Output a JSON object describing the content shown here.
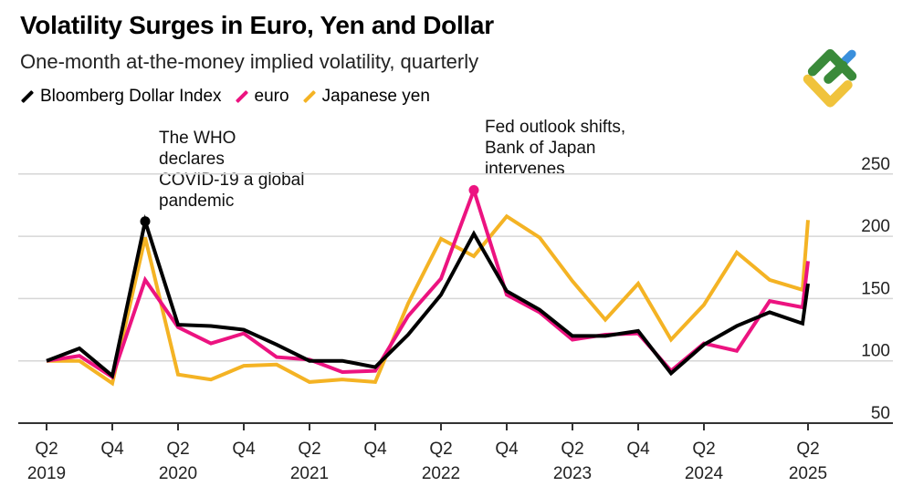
{
  "title": "Volatility Surges in Euro, Yen and Dollar",
  "subtitle": "One-month at-the-money implied volatility, quarterly",
  "logo": "green-yellow-blue-mark",
  "chart_data": {
    "type": "line",
    "x": [
      "2019-Q2",
      "2019-Q3",
      "2019-Q4",
      "2020-Q1",
      "2020-Q2",
      "2020-Q3",
      "2020-Q4",
      "2021-Q1",
      "2021-Q2",
      "2021-Q3",
      "2021-Q4",
      "2022-Q1",
      "2022-Q2",
      "2022-Q3",
      "2022-Q4",
      "2023-Q1",
      "2023-Q2",
      "2023-Q3",
      "2023-Q4",
      "2024-Q1",
      "2024-Q2",
      "2024-Q3",
      "2024-Q4",
      "2025-Q1",
      "2025-Q2"
    ],
    "series": [
      {
        "name": "Bloomberg Dollar Index",
        "color": "#000000",
        "values": [
          100,
          110,
          88,
          212,
          129,
          128,
          125,
          113,
          100,
          100,
          95,
          121,
          153,
          202,
          156,
          141,
          120,
          120,
          124,
          90,
          113,
          128,
          139,
          130,
          162
        ]
      },
      {
        "name": "euro",
        "color": "#ec1380",
        "values": [
          100,
          104,
          87,
          165,
          127,
          114,
          122,
          103,
          101,
          91,
          92,
          136,
          166,
          237,
          153,
          139,
          117,
          121,
          122,
          92,
          114,
          108,
          148,
          143,
          180
        ]
      },
      {
        "name": "Japanese yen",
        "color": "#f4b324",
        "values": [
          100,
          100,
          82,
          199,
          89,
          85,
          96,
          97,
          83,
          85,
          83,
          146,
          198,
          184,
          216,
          199,
          164,
          133,
          162,
          117,
          145,
          187,
          165,
          157,
          213
        ]
      }
    ],
    "ylim": [
      50,
      260
    ],
    "yticks": [
      "50",
      "100",
      "150",
      "200",
      "250"
    ],
    "ytick_values": [
      50,
      100,
      150,
      200,
      250
    ],
    "y_axis_side": "right",
    "grid": true,
    "legend": "top-left",
    "xticks": [
      {
        "x": "2019-Q2",
        "label": [
          "Q2",
          "2019"
        ]
      },
      {
        "x": "2019-Q4",
        "label": [
          "Q4",
          ""
        ]
      },
      {
        "x": "2020-Q2",
        "label": [
          "Q2",
          "2020"
        ]
      },
      {
        "x": "2020-Q4",
        "label": [
          "Q4",
          ""
        ]
      },
      {
        "x": "2021-Q2",
        "label": [
          "Q2",
          "2021"
        ]
      },
      {
        "x": "2021-Q4",
        "label": [
          "Q4",
          ""
        ]
      },
      {
        "x": "2022-Q2",
        "label": [
          "Q2",
          "2022"
        ]
      },
      {
        "x": "2022-Q4",
        "label": [
          "Q4",
          ""
        ]
      },
      {
        "x": "2023-Q2",
        "label": [
          "Q2",
          "2023"
        ]
      },
      {
        "x": "2023-Q4",
        "label": [
          "Q4",
          ""
        ]
      },
      {
        "x": "2024-Q2",
        "label": [
          "Q2",
          "2024"
        ]
      },
      {
        "x": "2025-Q2",
        "label": [
          "Q2",
          "2025"
        ]
      }
    ],
    "annotations": [
      {
        "text": [
          "The WHO",
          "declares",
          "COVID-19 a global",
          "pandemic"
        ],
        "x": "2020-Q1",
        "series": "Bloomberg Dollar Index"
      },
      {
        "text": [
          "Fed outlook shifts,",
          "Bank of Japan",
          "intervenes"
        ],
        "x": "2022-Q3",
        "series": "euro"
      }
    ]
  }
}
